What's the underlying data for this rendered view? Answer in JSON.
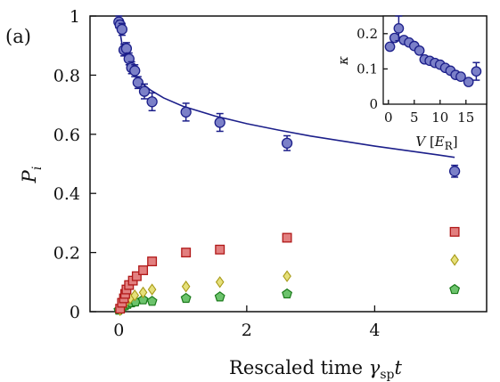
{
  "panel_label": "(a)",
  "chart_data": [
    {
      "type": "scatter",
      "xlabel": "Rescaled time",
      "xlabel_symbol": "γ",
      "xlabel_subscript": "sp",
      "xlabel_var": "t",
      "ylabel": "P",
      "ylabel_subscript": "i",
      "xlim": [
        -0.45,
        5.75
      ],
      "ylim": [
        0,
        1
      ],
      "xticks": [
        0,
        2,
        4
      ],
      "yticks": [
        0,
        0.2,
        0.4,
        0.6,
        0.8,
        1
      ],
      "ytick_labels": [
        "0",
        "0.2",
        "0.4",
        "0.6",
        "0.8",
        "1"
      ],
      "xtick_labels": [
        "0",
        "2",
        "4"
      ],
      "grid": false,
      "series": [
        {
          "marker": "circle",
          "color": "#7b80c8",
          "edge": "#1c1f8a",
          "points": [
            {
              "x": 0.0,
              "y": 0.98,
              "err": 0.02
            },
            {
              "x": 0.02,
              "y": 0.97,
              "err": 0.015
            },
            {
              "x": 0.05,
              "y": 0.955,
              "err": 0.02
            },
            {
              "x": 0.08,
              "y": 0.885,
              "err": 0.02
            },
            {
              "x": 0.12,
              "y": 0.89,
              "err": 0.02
            },
            {
              "x": 0.16,
              "y": 0.855,
              "err": 0.02
            },
            {
              "x": 0.2,
              "y": 0.825,
              "err": 0.02
            },
            {
              "x": 0.25,
              "y": 0.815,
              "err": 0.02
            },
            {
              "x": 0.3,
              "y": 0.775,
              "err": 0.02
            },
            {
              "x": 0.4,
              "y": 0.745,
              "err": 0.025
            },
            {
              "x": 0.52,
              "y": 0.71,
              "err": 0.03
            },
            {
              "x": 1.05,
              "y": 0.675,
              "err": 0.03
            },
            {
              "x": 1.58,
              "y": 0.64,
              "err": 0.03
            },
            {
              "x": 2.63,
              "y": 0.57,
              "err": 0.025
            },
            {
              "x": 5.25,
              "y": 0.475,
              "err": 0.02
            }
          ]
        },
        {
          "marker": "square",
          "color": "#e27f7f",
          "edge": "#b01818",
          "points": [
            {
              "x": 0.02,
              "y": 0.01
            },
            {
              "x": 0.05,
              "y": 0.03
            },
            {
              "x": 0.08,
              "y": 0.045
            },
            {
              "x": 0.1,
              "y": 0.06
            },
            {
              "x": 0.12,
              "y": 0.075
            },
            {
              "x": 0.16,
              "y": 0.09
            },
            {
              "x": 0.22,
              "y": 0.105
            },
            {
              "x": 0.28,
              "y": 0.12
            },
            {
              "x": 0.38,
              "y": 0.14
            },
            {
              "x": 0.52,
              "y": 0.17
            },
            {
              "x": 1.05,
              "y": 0.2
            },
            {
              "x": 1.58,
              "y": 0.21
            },
            {
              "x": 2.63,
              "y": 0.25
            },
            {
              "x": 5.25,
              "y": 0.27
            }
          ]
        },
        {
          "marker": "diamond",
          "color": "#e6e07a",
          "edge": "#a89a18",
          "points": [
            {
              "x": 0.02,
              "y": 0.005
            },
            {
              "x": 0.05,
              "y": 0.015
            },
            {
              "x": 0.08,
              "y": 0.025
            },
            {
              "x": 0.12,
              "y": 0.035
            },
            {
              "x": 0.18,
              "y": 0.045
            },
            {
              "x": 0.25,
              "y": 0.055
            },
            {
              "x": 0.38,
              "y": 0.065
            },
            {
              "x": 0.52,
              "y": 0.075
            },
            {
              "x": 1.05,
              "y": 0.085
            },
            {
              "x": 1.58,
              "y": 0.1
            },
            {
              "x": 2.63,
              "y": 0.12
            },
            {
              "x": 5.25,
              "y": 0.175
            }
          ]
        },
        {
          "marker": "pentagon",
          "color": "#6cc36c",
          "edge": "#1a7a1a",
          "points": [
            {
              "x": 0.0,
              "y": 0.005
            },
            {
              "x": 0.03,
              "y": 0.01
            },
            {
              "x": 0.06,
              "y": 0.015
            },
            {
              "x": 0.1,
              "y": 0.02
            },
            {
              "x": 0.14,
              "y": 0.025
            },
            {
              "x": 0.2,
              "y": 0.03
            },
            {
              "x": 0.26,
              "y": 0.033
            },
            {
              "x": 0.38,
              "y": 0.04
            },
            {
              "x": 0.52,
              "y": 0.035
            },
            {
              "x": 1.05,
              "y": 0.045
            },
            {
              "x": 1.58,
              "y": 0.05
            },
            {
              "x": 2.63,
              "y": 0.06
            },
            {
              "x": 5.25,
              "y": 0.075
            }
          ]
        }
      ],
      "fit_line": {
        "color": "#1c1f8a",
        "points": [
          [
            0,
            1.0
          ],
          [
            0.02,
            0.945
          ],
          [
            0.05,
            0.905
          ],
          [
            0.1,
            0.865
          ],
          [
            0.15,
            0.838
          ],
          [
            0.2,
            0.818
          ],
          [
            0.3,
            0.788
          ],
          [
            0.4,
            0.766
          ],
          [
            0.5,
            0.749
          ],
          [
            0.7,
            0.723
          ],
          [
            1.0,
            0.695
          ],
          [
            1.5,
            0.662
          ],
          [
            2.0,
            0.636
          ],
          [
            2.5,
            0.614
          ],
          [
            3.0,
            0.594
          ],
          [
            3.5,
            0.577
          ],
          [
            4.0,
            0.56
          ],
          [
            4.5,
            0.545
          ],
          [
            5.0,
            0.53
          ],
          [
            5.25,
            0.522
          ]
        ]
      }
    },
    {
      "type": "scatter",
      "inset": true,
      "xlabel": "V",
      "xlabel_unit": "E",
      "xlabel_unit_sub": "R",
      "ylabel": "κ",
      "xlim": [
        -1,
        19
      ],
      "ylim": [
        0,
        0.25
      ],
      "xticks": [
        0,
        5,
        10,
        15
      ],
      "xtick_labels": [
        "0",
        "5",
        "10",
        "15"
      ],
      "yticks": [
        0,
        0.1,
        0.2
      ],
      "ytick_labels": [
        "0",
        "0.1",
        "0.2"
      ],
      "series": [
        {
          "marker": "circle",
          "color": "#7b80c8",
          "edge": "#1c1f8a",
          "points": [
            {
              "x": 0.3,
              "y": 0.163
            },
            {
              "x": 1.2,
              "y": 0.188
            },
            {
              "x": 2.0,
              "y": 0.215,
              "err": 0.035
            },
            {
              "x": 3.0,
              "y": 0.182
            },
            {
              "x": 4.0,
              "y": 0.175
            },
            {
              "x": 5.0,
              "y": 0.165
            },
            {
              "x": 6.0,
              "y": 0.152
            },
            {
              "x": 7.0,
              "y": 0.127
            },
            {
              "x": 8.0,
              "y": 0.123
            },
            {
              "x": 9.0,
              "y": 0.117
            },
            {
              "x": 10.0,
              "y": 0.112
            },
            {
              "x": 11.0,
              "y": 0.103
            },
            {
              "x": 12.0,
              "y": 0.095
            },
            {
              "x": 13.0,
              "y": 0.083
            },
            {
              "x": 14.0,
              "y": 0.078
            },
            {
              "x": 15.5,
              "y": 0.063
            },
            {
              "x": 17.0,
              "y": 0.093,
              "err": 0.025
            }
          ]
        }
      ]
    }
  ]
}
